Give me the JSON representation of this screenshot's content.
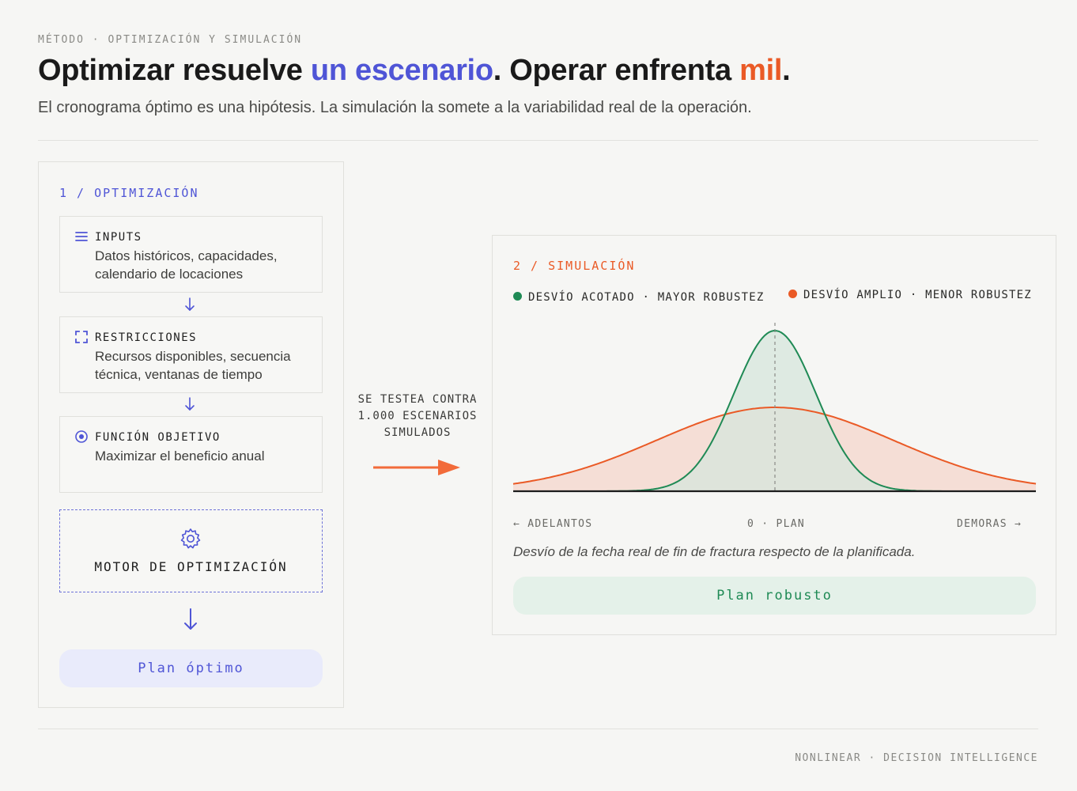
{
  "header": {
    "eyebrow": "MÉTODO · OPTIMIZACIÓN Y SIMULACIÓN",
    "title_part1": "Optimizar resuelve ",
    "title_highlight1": "un escenario",
    "title_part2": ". Operar enfrenta ",
    "title_highlight2": "mil",
    "title_part3": ".",
    "subtitle": "El cronograma óptimo es una hipótesis. La simulación la somete a la variabilidad real de la operación."
  },
  "optimization": {
    "label": "1 / OPTIMIZACIÓN",
    "steps": [
      {
        "title": "INPUTS",
        "description": "Datos históricos, capacidades, calendario de locaciones",
        "icon": "list-icon"
      },
      {
        "title": "RESTRICCIONES",
        "description": "Recursos disponibles, secuencia técnica, ventanas de tiempo",
        "icon": "bracket-frame-icon"
      },
      {
        "title": "FUNCIÓN OBJETIVO",
        "description": "Maximizar el beneficio anual",
        "icon": "target-icon"
      }
    ],
    "engine_label": "MOTOR DE OPTIMIZACIÓN",
    "result_label": "Plan óptimo"
  },
  "connector": {
    "text_line1": "SE TESTEA CONTRA",
    "text_line2": "1.000 ESCENARIOS",
    "text_line3": "SIMULADOS"
  },
  "simulation": {
    "label": "2 / SIMULACIÓN",
    "legend_narrow_main": "DESVÍO ACOTADO",
    "legend_narrow_sub": "MAYOR ROBUSTEZ",
    "legend_wide_main": "DESVÍO AMPLIO",
    "legend_wide_sub": "MENOR ROBUSTEZ",
    "axis_left": "← ADELANTOS",
    "axis_center": "0 · PLAN",
    "axis_right": "DEMORAS →",
    "caption": "Desvío de la fecha real de fin de fractura respecto de la planificada.",
    "result_label": "Plan robusto"
  },
  "footer": {
    "text": "NONLINEAR · DECISION INTELLIGENCE"
  },
  "colors": {
    "accent_blue": "#4f55d6",
    "accent_orange": "#ea5a26",
    "accent_green": "#1f8a55",
    "narrow_fill": "#d5e6dc",
    "wide_fill": "#f5ded6"
  }
}
